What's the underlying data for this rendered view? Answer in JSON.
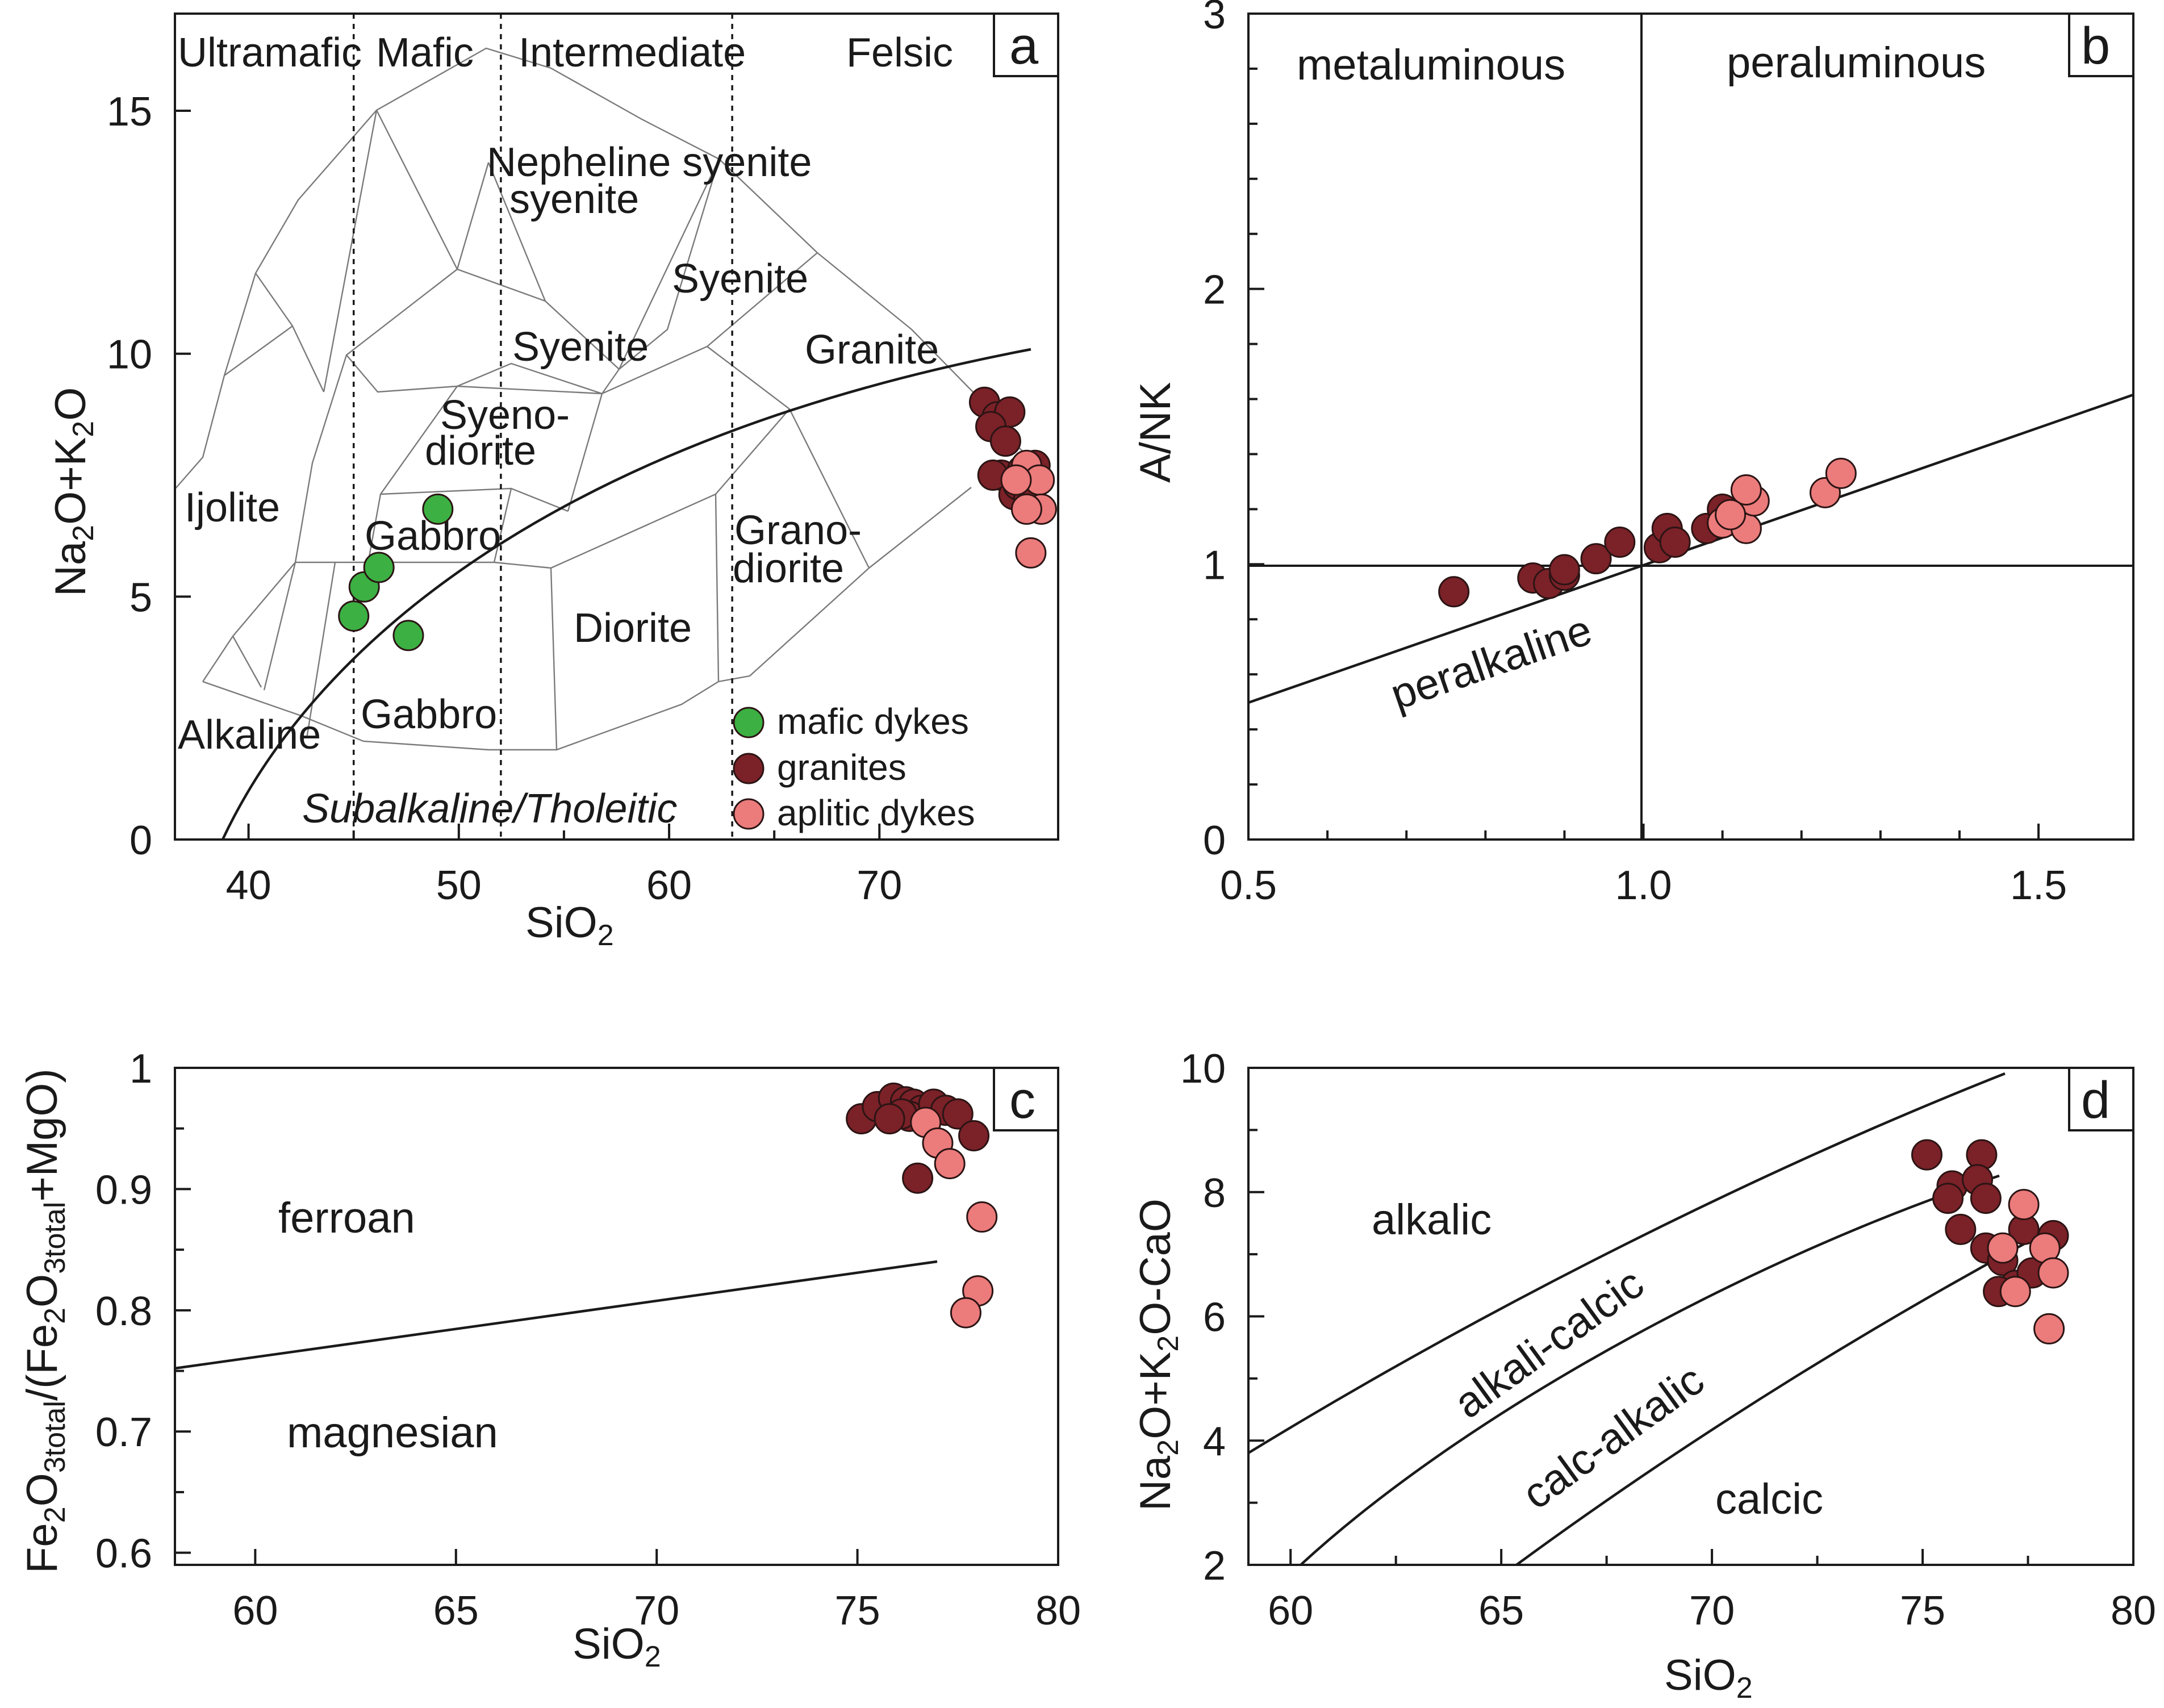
{
  "colors": {
    "mafic": "#3cb043",
    "granite": "#7b2128",
    "aplitic": "#ec7b7b"
  },
  "chart_data": [
    {
      "panel": "a",
      "type": "scatter",
      "xlabel": "SiO2",
      "ylabel": "Na2O+K2O",
      "xlim": [
        36.5,
        78.5
      ],
      "ylim": [
        0,
        17
      ],
      "xticks": [
        40,
        50,
        60,
        70
      ],
      "yticks": [
        0,
        5,
        10,
        15
      ],
      "regions_top": [
        "Ultramafic",
        "Mafic",
        "Intermediate",
        "Felsic"
      ],
      "field_labels": [
        "Nepheline syenite",
        "Syenite",
        "Syenite",
        "Granite",
        "Syeno- diorite",
        "Ijolite",
        "Gabbro",
        "Grano- diorite",
        "Diorite",
        "Gabbro",
        "Alkaline",
        "Subalkaline/Tholeitic"
      ],
      "legend": [
        "mafic dykes",
        "granites",
        "aplitic dykes"
      ],
      "series": [
        {
          "name": "mafic dykes",
          "x": [
            45.5,
            45.0,
            46.2,
            47.6,
            49.0
          ],
          "y": [
            5.2,
            4.6,
            5.6,
            4.2,
            6.8
          ]
        },
        {
          "name": "granites",
          "x": [
            75.0,
            75.6,
            76.2,
            75.3,
            76.0,
            75.8,
            76.4,
            77.4,
            76.8,
            75.4,
            76.6,
            77.1
          ],
          "y": [
            9.0,
            8.7,
            8.8,
            8.5,
            8.2,
            7.5,
            7.1,
            7.7,
            7.6,
            7.5,
            7.3,
            7.0
          ]
        },
        {
          "name": "aplitic dykes",
          "x": [
            77.0,
            77.6,
            76.5,
            77.7,
            77.0,
            77.2
          ],
          "y": [
            7.7,
            7.4,
            7.4,
            6.8,
            6.8,
            5.9
          ]
        }
      ]
    },
    {
      "panel": "b",
      "type": "scatter",
      "xlabel": "",
      "ylabel": "A/NK",
      "xlim": [
        0.5,
        1.62
      ],
      "ylim": [
        0,
        3
      ],
      "xticks": [
        0.5,
        1.0,
        1.5
      ],
      "xtick_labels": [
        "0.5",
        "1.0",
        "1.5"
      ],
      "yticks": [
        0,
        1,
        2,
        3
      ],
      "field_labels": [
        "metaluminous",
        "peraluminous",
        "peralkaline"
      ],
      "series": [
        {
          "name": "granites",
          "x": [
            0.76,
            0.86,
            0.88,
            0.9,
            0.9,
            0.94,
            0.97,
            1.02,
            1.03,
            1.04,
            1.08,
            1.1,
            1.1
          ],
          "y": [
            0.9,
            0.95,
            0.93,
            0.96,
            0.98,
            1.02,
            1.08,
            1.06,
            1.13,
            1.08,
            1.13,
            1.15,
            1.2
          ]
        },
        {
          "name": "aplitic dykes",
          "x": [
            1.1,
            1.13,
            1.14,
            1.13,
            1.11,
            1.23,
            1.25
          ],
          "y": [
            1.15,
            1.13,
            1.23,
            1.27,
            1.18,
            1.26,
            1.33
          ]
        }
      ]
    },
    {
      "panel": "c",
      "type": "scatter",
      "xlabel": "SiO2",
      "ylabel": "Fe2O3total/(Fe2O3total+MgO)",
      "xlim": [
        58,
        80
      ],
      "ylim": [
        0.59,
        1.0
      ],
      "xticks": [
        60,
        65,
        70,
        75,
        80
      ],
      "yticks": [
        0.6,
        0.7,
        0.8,
        0.9,
        1.0
      ],
      "ytick_labels": [
        "0.6",
        "0.7",
        "0.8",
        "0.9",
        "1"
      ],
      "field_labels": [
        "ferroan",
        "magnesian"
      ],
      "series": [
        {
          "name": "granites",
          "x": [
            75.1,
            75.5,
            75.9,
            76.2,
            76.4,
            76.6,
            76.3,
            76.1,
            75.8,
            76.9,
            77.2,
            77.5,
            76.5,
            77.9
          ],
          "y": [
            0.958,
            0.968,
            0.975,
            0.972,
            0.97,
            0.965,
            0.96,
            0.962,
            0.958,
            0.97,
            0.965,
            0.962,
            0.909,
            0.944
          ]
        },
        {
          "name": "aplitic dykes",
          "x": [
            76.7,
            77.0,
            77.3,
            78.1,
            78.0,
            77.7
          ],
          "y": [
            0.955,
            0.938,
            0.921,
            0.877,
            0.816,
            0.798
          ]
        }
      ]
    },
    {
      "panel": "d",
      "type": "scatter",
      "xlabel": "SiO2",
      "ylabel": "Na2O+K2O-CaO",
      "xlim": [
        59,
        80
      ],
      "ylim": [
        2,
        10
      ],
      "xticks": [
        60,
        65,
        70,
        75,
        80
      ],
      "yticks": [
        2,
        4,
        6,
        8,
        10
      ],
      "field_labels": [
        "alkalic",
        "alkali-calcic",
        "calc-alkalic",
        "calcic"
      ],
      "series": [
        {
          "name": "granites",
          "x": [
            75.1,
            76.4,
            75.7,
            75.6,
            76.3,
            76.5,
            75.9,
            76.5,
            76.9,
            77.4,
            78.1,
            77.2,
            77.6,
            76.8
          ],
          "y": [
            8.6,
            8.6,
            8.1,
            7.9,
            8.2,
            7.9,
            7.4,
            7.1,
            6.9,
            7.4,
            7.3,
            6.5,
            6.7,
            6.4
          ]
        },
        {
          "name": "aplitic dykes",
          "x": [
            77.4,
            76.9,
            77.9,
            78.1,
            77.2,
            78.0
          ],
          "y": [
            7.8,
            7.1,
            7.1,
            6.7,
            6.4,
            5.8
          ]
        }
      ]
    }
  ]
}
